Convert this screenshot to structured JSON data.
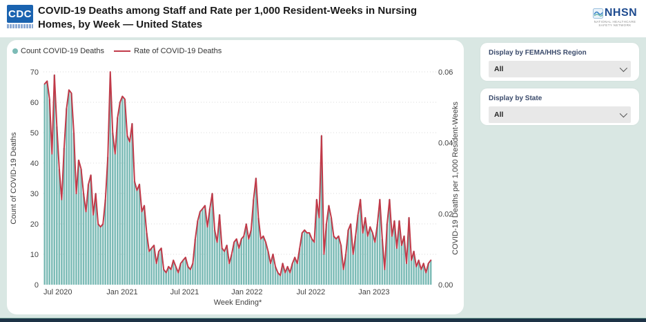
{
  "header": {
    "title": "COVID-19 Deaths among Staff and Rate per 1,000 Resident-Weeks in Nursing Homes, by Week — United States",
    "cdc_logo_text": "CDC",
    "nhsn_logo": {
      "name": "NHSN",
      "tagline": "NATIONAL HEALTHCARE SAFETY NETWORK"
    }
  },
  "filters": {
    "region": {
      "label": "Display by FEMA/HHS Region",
      "value": "All"
    },
    "state": {
      "label": "Display by State",
      "value": "All"
    }
  },
  "chart_data": {
    "type": "bar",
    "combo": "weekly bars with overlaid line",
    "xlabel": "Week Ending*",
    "left_axis": {
      "label": "Count of COVID-19 Deaths",
      "ticks": [
        0,
        10,
        20,
        30,
        40,
        50,
        60,
        70
      ],
      "lim": [
        0,
        70
      ]
    },
    "right_axis": {
      "label": "COVID-19 Deaths per 1,000 Resident-Weeks",
      "ticks": [
        "0.00",
        "0.02",
        "0.04",
        "0.06"
      ],
      "lim": [
        0,
        0.06
      ]
    },
    "x_ticks": [
      {
        "label": "Jul 2020",
        "index": 5.4
      },
      {
        "label": "Jan 2021",
        "index": 31.9
      },
      {
        "label": "Jul 2021",
        "index": 57.6
      },
      {
        "label": "Jan 2022",
        "index": 83.3
      },
      {
        "label": "Jul 2022",
        "index": 109.6
      },
      {
        "label": "Jan 2023",
        "index": 135.6
      }
    ],
    "n_points": 160,
    "grid": "horizontal dotted",
    "legend_position": "top-left",
    "series": [
      {
        "name": "Count COVID-19 Deaths",
        "type": "bar",
        "axis": "left",
        "color": "#7cbbb6",
        "values": [
          66,
          67,
          61,
          43,
          69,
          52,
          38,
          28,
          45,
          58,
          64,
          63,
          50,
          30,
          41,
          38,
          30,
          24,
          33,
          36,
          23,
          30,
          20,
          19,
          20,
          28,
          42,
          68,
          50,
          43,
          55,
          60,
          62,
          61,
          49,
          47,
          53,
          34,
          31,
          33,
          24,
          26,
          17,
          11,
          12,
          13,
          7,
          11,
          12,
          5,
          4,
          6,
          5,
          8,
          6,
          4,
          7,
          8,
          9,
          6,
          5,
          7,
          15,
          21,
          24,
          25,
          26,
          19,
          25,
          30,
          18,
          14,
          23,
          12,
          11,
          13,
          7,
          10,
          14,
          15,
          12,
          15,
          16,
          20,
          15,
          18,
          28,
          35,
          22,
          15,
          16,
          14,
          11,
          7,
          10,
          6,
          4,
          3,
          7,
          4,
          6,
          4,
          7,
          9,
          7,
          12,
          17,
          18,
          17,
          17,
          15,
          14,
          28,
          22,
          49,
          10,
          20,
          26,
          22,
          16,
          15,
          16,
          13,
          5,
          10,
          18,
          20,
          10,
          16,
          23,
          28,
          17,
          22,
          16,
          19,
          17,
          14,
          20,
          28,
          15,
          5,
          20,
          28,
          16,
          21,
          12,
          21,
          13,
          16,
          7,
          22,
          8,
          11,
          6,
          8,
          5,
          7,
          4,
          7,
          8
        ]
      },
      {
        "name": "Rate of COVID-19 Deaths",
        "type": "line",
        "axis": "right",
        "color": "#c13a49",
        "values": [
          0.0566,
          0.0574,
          0.0523,
          0.0369,
          0.0591,
          0.0446,
          0.0326,
          0.024,
          0.0386,
          0.0497,
          0.0549,
          0.054,
          0.0429,
          0.0257,
          0.0351,
          0.0326,
          0.0257,
          0.0206,
          0.0283,
          0.0309,
          0.0197,
          0.0257,
          0.0171,
          0.0163,
          0.0171,
          0.024,
          0.036,
          0.06,
          0.0429,
          0.0369,
          0.0471,
          0.0514,
          0.0531,
          0.0523,
          0.042,
          0.0403,
          0.0454,
          0.0291,
          0.0266,
          0.0283,
          0.0206,
          0.0223,
          0.0146,
          0.0094,
          0.0103,
          0.0111,
          0.006,
          0.0094,
          0.0103,
          0.0043,
          0.0034,
          0.0051,
          0.0043,
          0.0069,
          0.0051,
          0.0034,
          0.006,
          0.0069,
          0.0077,
          0.0051,
          0.0043,
          0.006,
          0.0129,
          0.018,
          0.0206,
          0.0214,
          0.0223,
          0.0163,
          0.0214,
          0.0257,
          0.0154,
          0.012,
          0.0197,
          0.0103,
          0.0094,
          0.0111,
          0.006,
          0.0086,
          0.012,
          0.0129,
          0.0103,
          0.0129,
          0.0137,
          0.0171,
          0.0129,
          0.0154,
          0.024,
          0.03,
          0.0189,
          0.0129,
          0.0137,
          0.012,
          0.0094,
          0.006,
          0.0086,
          0.0051,
          0.0034,
          0.0026,
          0.006,
          0.0034,
          0.0051,
          0.0034,
          0.006,
          0.0077,
          0.006,
          0.0103,
          0.0146,
          0.0154,
          0.0146,
          0.0146,
          0.0129,
          0.012,
          0.024,
          0.0189,
          0.042,
          0.0086,
          0.0171,
          0.0223,
          0.0189,
          0.0137,
          0.0129,
          0.0137,
          0.0111,
          0.0043,
          0.0086,
          0.0154,
          0.0171,
          0.0086,
          0.0137,
          0.0197,
          0.024,
          0.0146,
          0.0189,
          0.0137,
          0.0163,
          0.0146,
          0.012,
          0.0171,
          0.024,
          0.0129,
          0.0043,
          0.0171,
          0.024,
          0.0137,
          0.018,
          0.0103,
          0.018,
          0.0111,
          0.0137,
          0.006,
          0.0189,
          0.0069,
          0.0094,
          0.0051,
          0.0069,
          0.0043,
          0.006,
          0.0034,
          0.006,
          0.0069
        ]
      }
    ]
  },
  "colors": {
    "page_bg": "#d9e7e3",
    "card_bg": "#ffffff",
    "bar_teal": "#7cbbb6",
    "line_red": "#c13a49",
    "footer_bar": "#1d3246",
    "cdc_blue": "#1a63b0",
    "nhsn_blue": "#1e4b8f",
    "axis_text": "#404040"
  }
}
